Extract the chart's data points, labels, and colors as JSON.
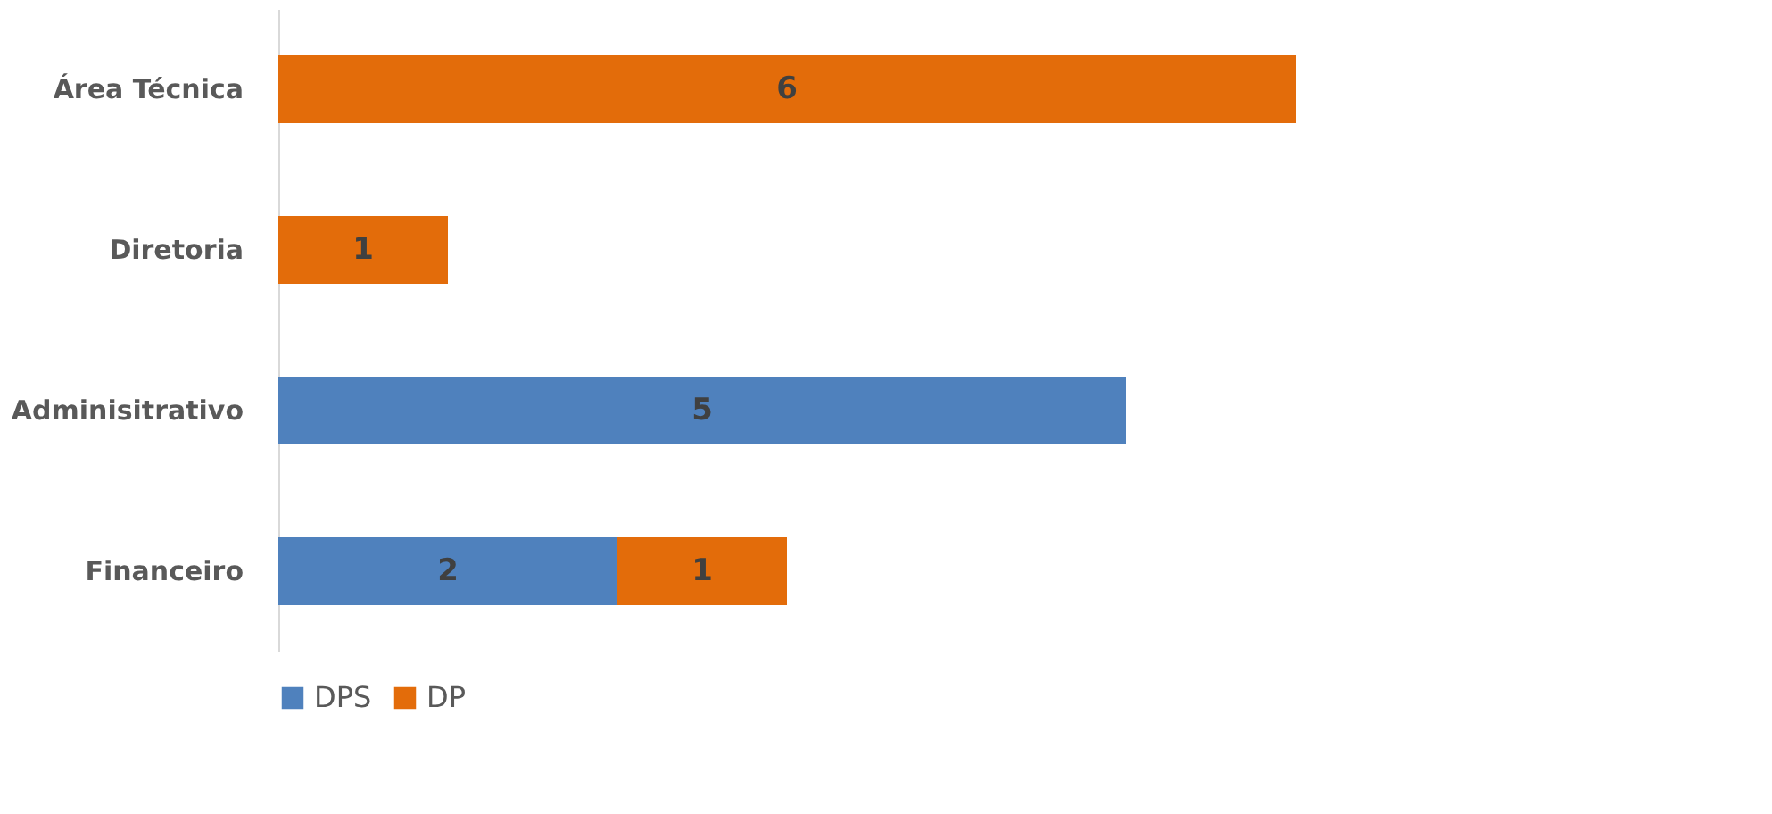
{
  "chart_data": {
    "type": "bar",
    "orientation": "horizontal",
    "stacked": true,
    "categories": [
      "Área Técnica",
      "Diretoria",
      "Adminisitrativo",
      "Financeiro"
    ],
    "series": [
      {
        "name": "DPS",
        "color": "#4f81bd",
        "values": [
          null,
          null,
          5,
          2
        ]
      },
      {
        "name": "DP",
        "color": "#e36c0a",
        "values": [
          6,
          1,
          null,
          1
        ]
      }
    ],
    "xlim": [
      0,
      8
    ],
    "data_labels": true,
    "legend": "bottom",
    "grid": false,
    "tick_labels": "y"
  }
}
